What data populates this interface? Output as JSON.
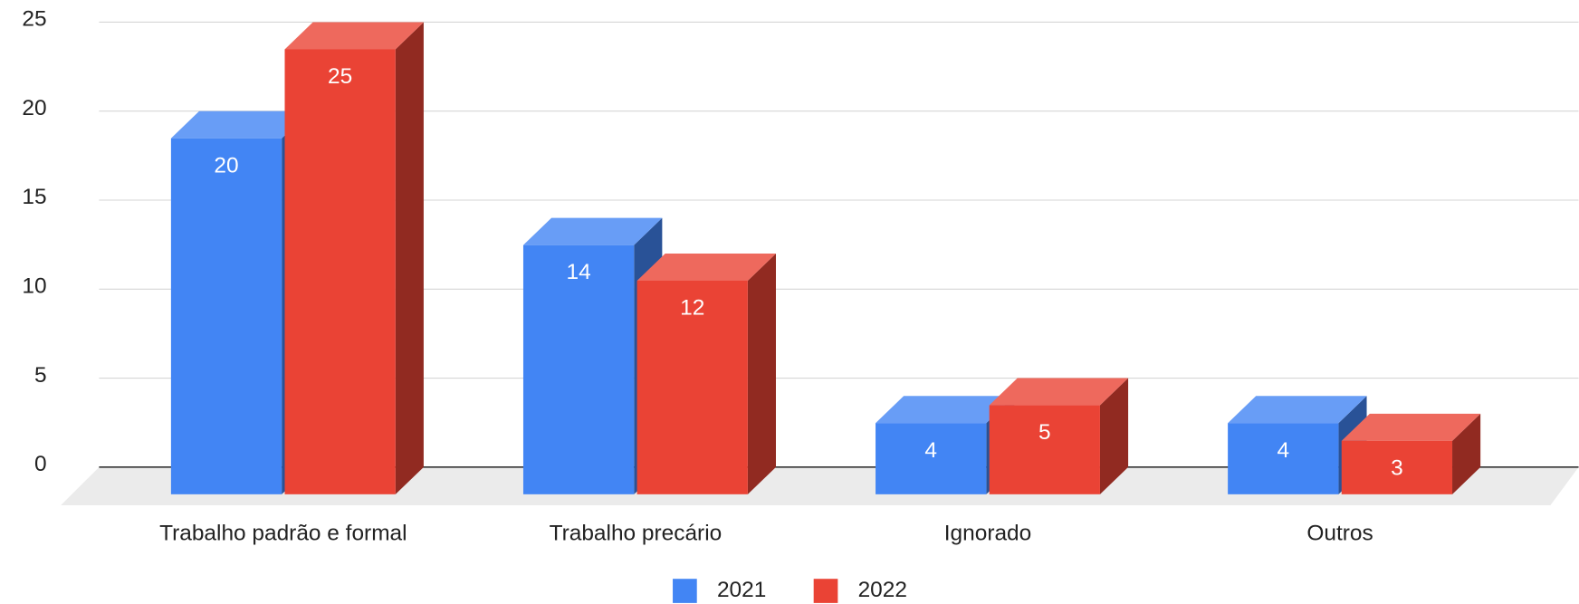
{
  "chart_data": {
    "type": "bar3d",
    "categories": [
      "Trabalho padrão e formal",
      "Trabalho precário",
      "Ignorado",
      "Outros"
    ],
    "series": [
      {
        "name": "2021",
        "color": "#4285f4",
        "values": [
          20,
          14,
          4,
          4
        ]
      },
      {
        "name": "2022",
        "color": "#ea4335",
        "values": [
          25,
          12,
          5,
          3
        ]
      }
    ],
    "ylim": [
      0,
      25
    ],
    "yticks": [
      0,
      5,
      10,
      15,
      20,
      25
    ],
    "grid": true,
    "legend": "bottom"
  }
}
